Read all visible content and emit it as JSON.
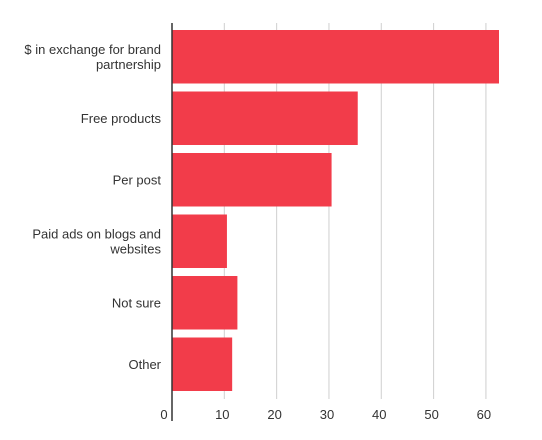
{
  "chart_data": {
    "type": "bar",
    "orientation": "horizontal",
    "title": "",
    "xlabel": "",
    "ylabel": "",
    "categories": [
      [
        "$ in exchange for brand",
        "partnership"
      ],
      [
        "Free products"
      ],
      [
        "Per post"
      ],
      [
        "Paid ads on blogs and",
        "websites"
      ],
      [
        "Not sure"
      ],
      [
        "Other"
      ]
    ],
    "values": [
      62.5,
      35.5,
      30.5,
      10.5,
      12.5,
      11.5
    ],
    "xlim": [
      0,
      62.5
    ],
    "xticks": [
      "0",
      "10",
      "20",
      "30",
      "40",
      "50",
      "60"
    ],
    "xtick_values": [
      0,
      10,
      20,
      30,
      40,
      50,
      60
    ],
    "grid": true,
    "legend": "none",
    "bar_color": "#f23c4a"
  }
}
